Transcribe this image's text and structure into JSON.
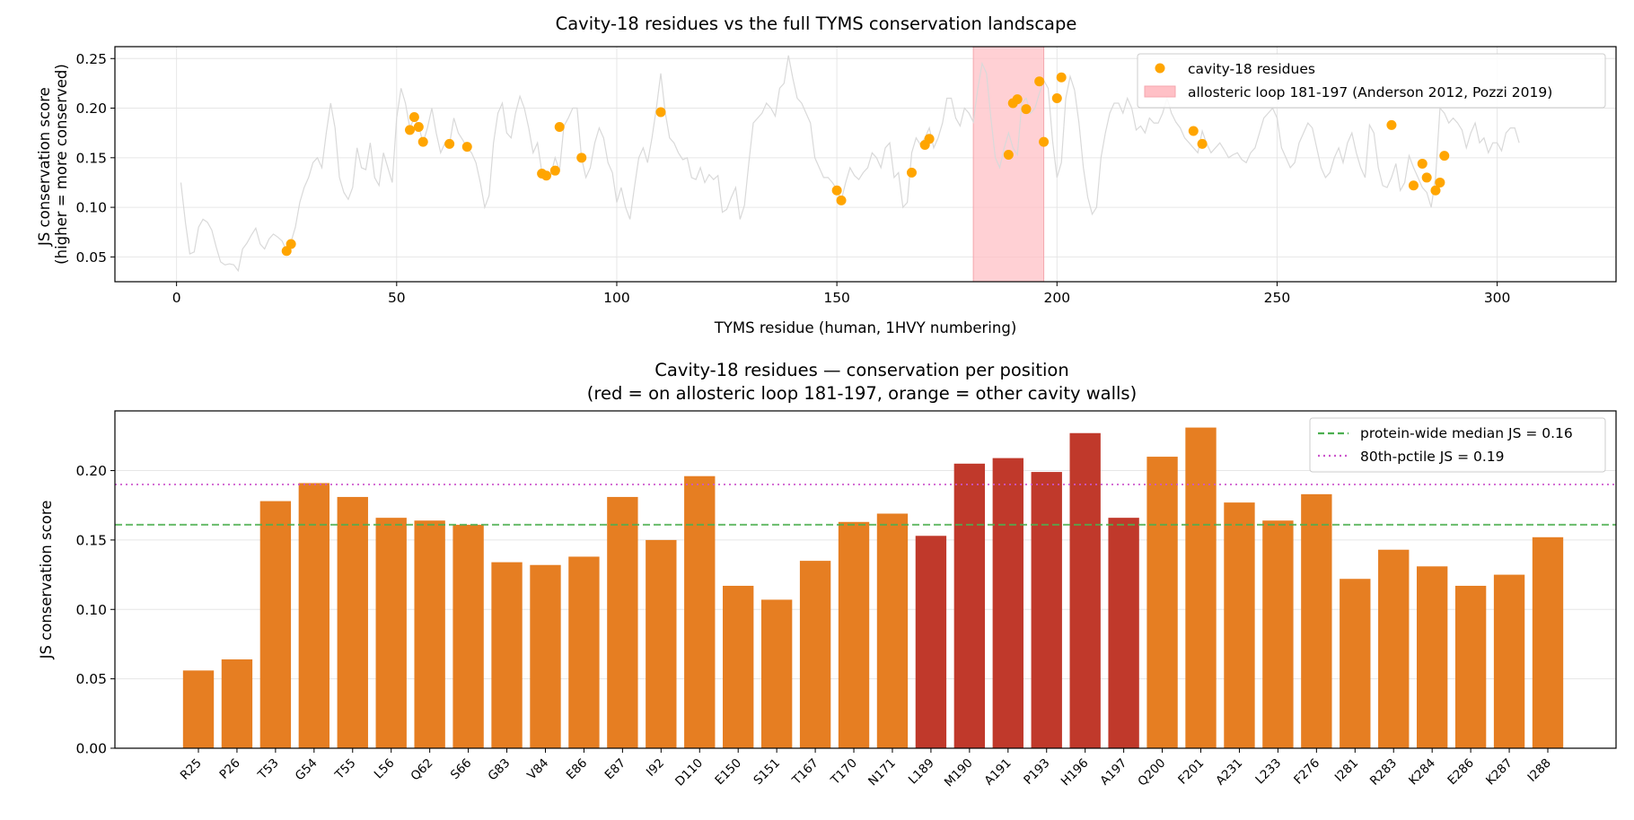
{
  "colors": {
    "background_line": "#d9d9d9",
    "cavity_marker": "#ffa500",
    "loop_span": "#ffc0c6",
    "bar_other": "#e67e22",
    "bar_loop": "#c0392b",
    "median_line": "#4caf50",
    "pctile_line": "#cc55cc",
    "grid": "#e6e6e6"
  },
  "chart_data": [
    {
      "type": "line",
      "title": "Cavity-18 residues vs the full TYMS conservation landscape",
      "xlabel": "TYMS residue (human, 1HVY numbering)",
      "ylabel": [
        "JS conservation score",
        "(higher = more conserved)"
      ],
      "xlim": [
        -14,
        327
      ],
      "ylim": [
        0.025,
        0.262
      ],
      "xticks": [
        "0",
        "50",
        "100",
        "150",
        "200",
        "250",
        "300"
      ],
      "yticks": [
        "0.05",
        "0.10",
        "0.15",
        "0.20",
        "0.25"
      ],
      "grid": true,
      "legend_position": "top-right",
      "legend": [
        "cavity-18 residues",
        "allosteric loop 181-197 (Anderson 2012, Pozzi 2019)"
      ],
      "highlight_span": {
        "x": [
          181,
          197
        ]
      },
      "background_series": {
        "x_start": 1,
        "values": [
          0.125,
          0.085,
          0.053,
          0.055,
          0.08,
          0.088,
          0.085,
          0.077,
          0.06,
          0.045,
          0.042,
          0.043,
          0.042,
          0.036,
          0.058,
          0.064,
          0.072,
          0.079,
          0.063,
          0.058,
          0.068,
          0.073,
          0.07,
          0.066,
          0.056,
          0.065,
          0.08,
          0.105,
          0.12,
          0.13,
          0.145,
          0.15,
          0.14,
          0.175,
          0.205,
          0.18,
          0.13,
          0.115,
          0.108,
          0.12,
          0.16,
          0.14,
          0.138,
          0.165,
          0.13,
          0.122,
          0.155,
          0.14,
          0.125,
          0.19,
          0.22,
          0.205,
          0.18,
          0.19,
          0.182,
          0.165,
          0.18,
          0.2,
          0.175,
          0.155,
          0.165,
          0.163,
          0.19,
          0.175,
          0.168,
          0.16,
          0.155,
          0.145,
          0.125,
          0.1,
          0.112,
          0.165,
          0.195,
          0.205,
          0.175,
          0.17,
          0.195,
          0.212,
          0.2,
          0.18,
          0.155,
          0.165,
          0.135,
          0.13,
          0.132,
          0.15,
          0.137,
          0.182,
          0.19,
          0.2,
          0.2,
          0.15,
          0.13,
          0.14,
          0.165,
          0.18,
          0.17,
          0.145,
          0.135,
          0.105,
          0.12,
          0.1,
          0.088,
          0.12,
          0.15,
          0.16,
          0.145,
          0.17,
          0.2,
          0.235,
          0.196,
          0.17,
          0.165,
          0.155,
          0.148,
          0.15,
          0.13,
          0.128,
          0.14,
          0.125,
          0.133,
          0.128,
          0.132,
          0.095,
          0.098,
          0.11,
          0.12,
          0.088,
          0.102,
          0.145,
          0.185,
          0.19,
          0.195,
          0.205,
          0.2,
          0.192,
          0.22,
          0.225,
          0.253,
          0.23,
          0.21,
          0.205,
          0.195,
          0.185,
          0.15,
          0.14,
          0.13,
          0.13,
          0.125,
          0.118,
          0.107,
          0.125,
          0.14,
          0.132,
          0.128,
          0.135,
          0.14,
          0.155,
          0.15,
          0.14,
          0.16,
          0.165,
          0.13,
          0.135,
          0.1,
          0.105,
          0.155,
          0.17,
          0.163,
          0.17,
          0.18,
          0.16,
          0.17,
          0.185,
          0.21,
          0.21,
          0.19,
          0.182,
          0.2,
          0.195,
          0.186,
          0.219,
          0.245,
          0.235,
          0.19,
          0.15,
          0.14,
          0.16,
          0.175,
          0.16,
          0.153,
          0.205,
          0.21,
          0.195,
          0.2,
          0.215,
          0.228,
          0.22,
          0.167,
          0.13,
          0.145,
          0.21,
          0.232,
          0.218,
          0.185,
          0.14,
          0.11,
          0.093,
          0.1,
          0.15,
          0.175,
          0.195,
          0.205,
          0.205,
          0.195,
          0.21,
          0.2,
          0.178,
          0.182,
          0.175,
          0.19,
          0.185,
          0.185,
          0.195,
          0.21,
          0.195,
          0.186,
          0.18,
          0.17,
          0.165,
          0.16,
          0.155,
          0.177,
          0.164,
          0.155,
          0.16,
          0.165,
          0.158,
          0.15,
          0.153,
          0.155,
          0.148,
          0.145,
          0.155,
          0.16,
          0.175,
          0.19,
          0.195,
          0.2,
          0.19,
          0.16,
          0.15,
          0.14,
          0.145,
          0.165,
          0.175,
          0.185,
          0.18,
          0.16,
          0.14,
          0.13,
          0.135,
          0.15,
          0.16,
          0.145,
          0.165,
          0.175,
          0.155,
          0.14,
          0.13,
          0.183,
          0.175,
          0.14,
          0.122,
          0.12,
          0.13,
          0.144,
          0.117,
          0.125,
          0.152,
          0.14,
          0.13,
          0.12,
          0.115,
          0.1,
          0.13,
          0.2,
          0.195,
          0.185,
          0.19,
          0.185,
          0.178,
          0.16,
          0.175,
          0.185,
          0.165,
          0.17,
          0.155,
          0.165,
          0.165,
          0.157,
          0.175,
          0.18,
          0.18,
          0.165
        ]
      },
      "series": [
        {
          "name": "cavity-18 residues",
          "points": [
            [
              25,
              0.056
            ],
            [
              26,
              0.063
            ],
            [
              53,
              0.178
            ],
            [
              54,
              0.191
            ],
            [
              55,
              0.181
            ],
            [
              56,
              0.166
            ],
            [
              62,
              0.164
            ],
            [
              66,
              0.161
            ],
            [
              83,
              0.134
            ],
            [
              84,
              0.132
            ],
            [
              86,
              0.137
            ],
            [
              87,
              0.181
            ],
            [
              92,
              0.15
            ],
            [
              110,
              0.196
            ],
            [
              150,
              0.117
            ],
            [
              151,
              0.107
            ],
            [
              167,
              0.135
            ],
            [
              170,
              0.163
            ],
            [
              171,
              0.169
            ],
            [
              189,
              0.153
            ],
            [
              190,
              0.205
            ],
            [
              191,
              0.209
            ],
            [
              193,
              0.199
            ],
            [
              196,
              0.227
            ],
            [
              197,
              0.166
            ],
            [
              200,
              0.21
            ],
            [
              201,
              0.231
            ],
            [
              231,
              0.177
            ],
            [
              233,
              0.164
            ],
            [
              276,
              0.183
            ],
            [
              281,
              0.122
            ],
            [
              283,
              0.144
            ],
            [
              284,
              0.13
            ],
            [
              286,
              0.117
            ],
            [
              287,
              0.125
            ],
            [
              288,
              0.152
            ]
          ]
        }
      ]
    },
    {
      "type": "bar",
      "title": [
        "Cavity-18 residues — conservation per position",
        "(red = on allosteric loop 181-197, orange = other cavity walls)"
      ],
      "xlabel": "",
      "ylabel": "JS conservation score",
      "ylim": [
        0,
        0.243
      ],
      "yticks": [
        "0.00",
        "0.05",
        "0.10",
        "0.15",
        "0.20"
      ],
      "grid": true,
      "legend_position": "top-right",
      "categories": [
        "R25",
        "P26",
        "T53",
        "G54",
        "T55",
        "L56",
        "Q62",
        "S66",
        "G83",
        "V84",
        "E86",
        "E87",
        "I92",
        "D110",
        "E150",
        "S151",
        "T167",
        "T170",
        "N171",
        "L189",
        "M190",
        "A191",
        "P193",
        "H196",
        "A197",
        "Q200",
        "F201",
        "A231",
        "L233",
        "F276",
        "I281",
        "R283",
        "K284",
        "E286",
        "K287",
        "I288"
      ],
      "values": [
        0.056,
        0.064,
        0.178,
        0.191,
        0.181,
        0.166,
        0.164,
        0.161,
        0.134,
        0.132,
        0.138,
        0.181,
        0.15,
        0.196,
        0.117,
        0.107,
        0.135,
        0.163,
        0.169,
        0.153,
        0.205,
        0.209,
        0.199,
        0.227,
        0.166,
        0.21,
        0.231,
        0.177,
        0.164,
        0.183,
        0.122,
        0.143,
        0.131,
        0.117,
        0.125,
        0.152
      ],
      "on_allosteric_loop": [
        false,
        false,
        false,
        false,
        false,
        false,
        false,
        false,
        false,
        false,
        false,
        false,
        false,
        false,
        false,
        false,
        false,
        false,
        false,
        true,
        true,
        true,
        true,
        true,
        true,
        false,
        false,
        false,
        false,
        false,
        false,
        false,
        false,
        false,
        false,
        false
      ],
      "reference_lines": [
        {
          "name": "protein-wide median JS = 0.16",
          "y": 0.161,
          "style": "dashed"
        },
        {
          "name": "80th-pctile JS = 0.19",
          "y": 0.19,
          "style": "dotted"
        }
      ]
    }
  ]
}
